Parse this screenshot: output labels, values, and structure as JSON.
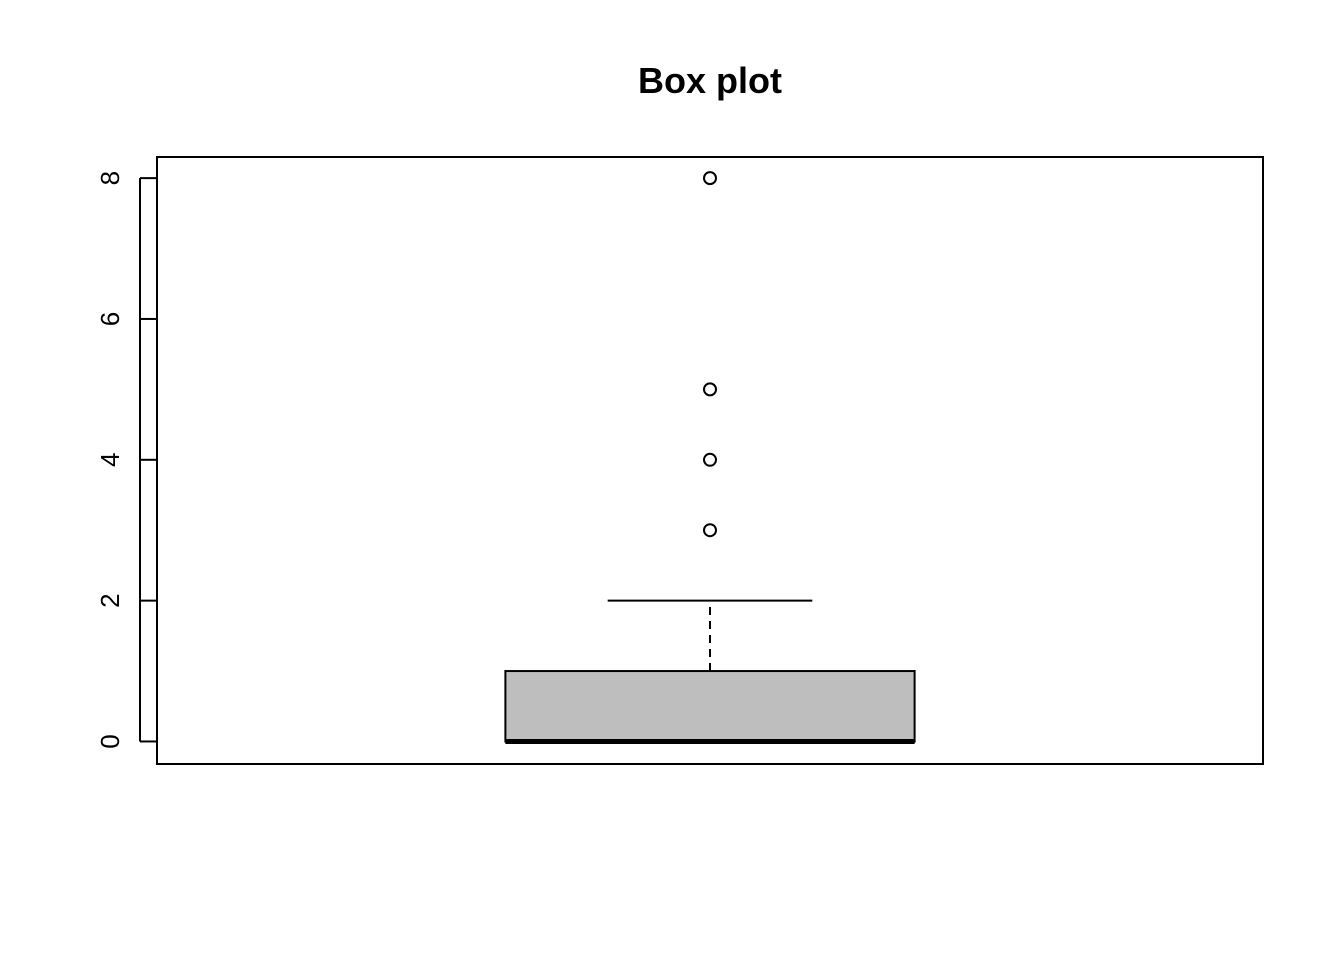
{
  "chart_data": {
    "type": "box",
    "title": "Box plot",
    "xlabel": "",
    "ylabel": "",
    "ylim": [
      -0.32,
      8.3
    ],
    "yticks": [
      0,
      2,
      4,
      6,
      8
    ],
    "ytick_labels": [
      "0",
      "2",
      "4",
      "6",
      "8"
    ],
    "boxes": [
      {
        "min": 0,
        "q1": 0,
        "median": 0,
        "q3": 1,
        "max": 2,
        "outliers": [
          3,
          4,
          5,
          8
        ]
      }
    ],
    "grid": false,
    "box_fill": "#bebebe",
    "line_color": "#000000"
  }
}
